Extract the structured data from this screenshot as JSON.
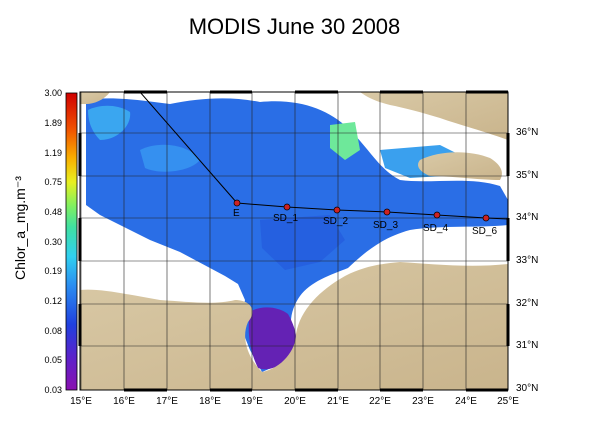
{
  "title": "MODIS June 30 2008",
  "colorbar": {
    "label": "Chlor_a_mg.m⁻³",
    "ticks": [
      "3.00",
      "1.89",
      "1.19",
      "0.75",
      "0.48",
      "0.30",
      "0.19",
      "0.12",
      "0.08",
      "0.05",
      "0.03"
    ]
  },
  "axes": {
    "lon_labels": [
      "15°E",
      "16°E",
      "17°E",
      "18°E",
      "19°E",
      "20°E",
      "21°E",
      "22°E",
      "23°E",
      "24°E",
      "25°E"
    ],
    "lat_labels": [
      "36°N",
      "35°N",
      "34°N",
      "33°N",
      "32°N",
      "31°N",
      "30°N"
    ]
  },
  "stations": [
    {
      "label": "E"
    },
    {
      "label": "SD_1"
    },
    {
      "label": "SD_2"
    },
    {
      "label": "SD_3"
    },
    {
      "label": "SD_4"
    },
    {
      "label": "SD_6"
    }
  ],
  "colors": {
    "land": "#d8c8a8",
    "low_chl": "#6a1fb0",
    "mid_chl": "#2f6fe0",
    "high_chl": "#39c8e8",
    "station_marker": "#cc2222"
  }
}
